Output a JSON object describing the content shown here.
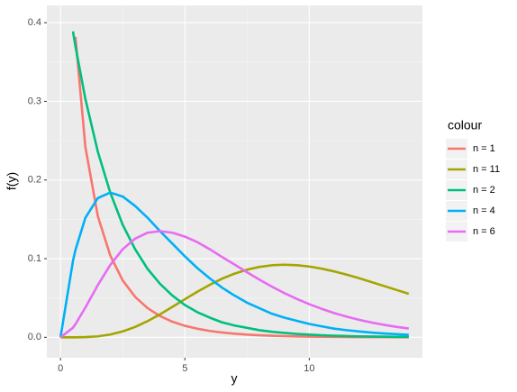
{
  "chart_data": {
    "type": "line",
    "x_label": "y",
    "y_label": "f(y)",
    "legend_title": "colour",
    "legend_position": "right",
    "grid": true,
    "x": [
      0,
      0.5,
      0.6,
      1,
      1.5,
      2,
      2.5,
      3,
      3.5,
      4,
      4.5,
      5,
      5.5,
      6,
      6.5,
      7,
      7.5,
      8,
      8.5,
      9,
      9.5,
      10,
      10.5,
      11,
      11.5,
      12,
      12.5,
      13,
      13.5,
      14
    ],
    "series": [
      {
        "name": "n = 1",
        "color": "#F8766D",
        "values": [
          null,
          null,
          0.382,
          0.242,
          0.154,
          0.104,
          0.0723,
          0.0514,
          0.0371,
          0.027,
          0.0198,
          0.0146,
          0.0109,
          0.0081,
          0.0061,
          0.0046,
          0.0034,
          0.0026,
          0.002,
          0.0015,
          0.0011,
          0.0009,
          0.0007,
          0.0005,
          0.0004,
          0.0003,
          0.0002,
          0.0002,
          0.0001,
          0.0001
        ]
      },
      {
        "name": "n = 11",
        "color": "#A3A500",
        "values": [
          0,
          0,
          0,
          0.0003,
          0.0012,
          0.0035,
          0.0075,
          0.0132,
          0.0206,
          0.0292,
          0.0387,
          0.0484,
          0.0579,
          0.0667,
          0.0746,
          0.081,
          0.086,
          0.0895,
          0.0916,
          0.0923,
          0.0917,
          0.09,
          0.0873,
          0.0838,
          0.0797,
          0.0752,
          0.0703,
          0.0653,
          0.0603,
          0.0553
        ]
      },
      {
        "name": "n = 2",
        "color": "#00BF7D",
        "values": [
          null,
          0.389,
          0.37,
          0.303,
          0.236,
          0.184,
          0.143,
          0.112,
          0.087,
          0.068,
          0.053,
          0.041,
          0.032,
          0.025,
          0.019,
          0.015,
          0.012,
          0.009,
          0.007,
          0.0056,
          0.0043,
          0.0034,
          0.0026,
          0.002,
          0.0016,
          0.0012,
          0.001,
          0.0008,
          0.0006,
          0.0005
        ]
      },
      {
        "name": "n = 4",
        "color": "#00B0F6",
        "values": [
          0,
          0.097,
          0.111,
          0.152,
          0.177,
          0.184,
          0.179,
          0.167,
          0.152,
          0.135,
          0.119,
          0.103,
          0.088,
          0.075,
          0.063,
          0.053,
          0.044,
          0.037,
          0.03,
          0.025,
          0.021,
          0.017,
          0.014,
          0.011,
          0.0091,
          0.0074,
          0.006,
          0.0049,
          0.004,
          0.0032
        ]
      },
      {
        "name": "n = 6",
        "color": "#E76BF3",
        "values": [
          0,
          0.0122,
          0.0167,
          0.0379,
          0.0664,
          0.092,
          0.112,
          0.1255,
          0.133,
          0.135,
          0.133,
          0.128,
          0.121,
          0.112,
          0.102,
          0.0925,
          0.0827,
          0.0733,
          0.0644,
          0.0562,
          0.0488,
          0.0421,
          0.0362,
          0.0309,
          0.0263,
          0.0223,
          0.0188,
          0.0159,
          0.0133,
          0.0112
        ]
      }
    ],
    "xlim": [
      -0.55,
      14.55
    ],
    "xticks": [
      0,
      5,
      10
    ],
    "ylim": [
      -0.026,
      0.422
    ],
    "yticks": [
      {
        "value": 0,
        "label": "0.0"
      },
      0.1,
      0.2,
      0.3,
      0.4
    ]
  }
}
